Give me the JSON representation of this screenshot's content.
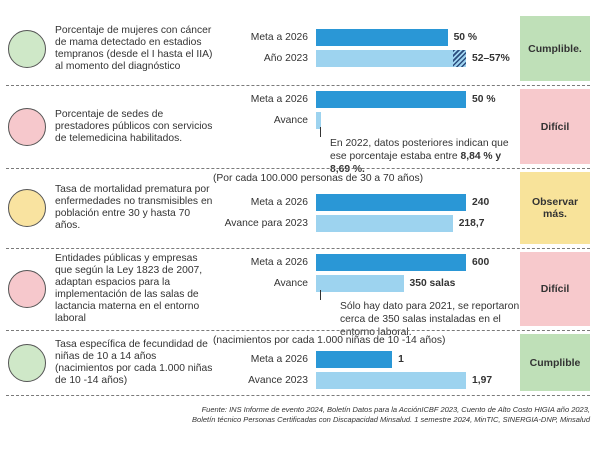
{
  "rows": [
    {
      "description": "Porcentaje de mujeres con cáncer de mama detectado en estadios tempranos (desde el I hasta el IIA) al momento del diagnóstico",
      "status": "Cumplible.",
      "bars": [
        {
          "label": "Meta a 2026",
          "value": 50,
          "value_label": "50 %"
        },
        {
          "label": "Año 2023",
          "value": [
            52,
            57
          ],
          "value_label": "52–57%"
        }
      ]
    },
    {
      "description": "Porcentaje de sedes de prestadores públicos con servicios de telemedicina habilitados.",
      "status": "Difícil",
      "bars": [
        {
          "label": "Meta a 2026",
          "value": 50,
          "value_label": "50 %"
        },
        {
          "label": "Avance",
          "value": null
        }
      ],
      "note": "En 2022, datos posteriores indican que ese porcentaje estaba entre",
      "note_bold": "8,84 % y 8,69 %."
    },
    {
      "description": "Tasa de mortalidad prematura por enfermedades no transmisibles en población entre 30 y hasta 70 años.",
      "status": "Observar más.",
      "note_top": "(Por cada 100.000 personas de 30 a 70 años)",
      "bars": [
        {
          "label": "Meta a 2026",
          "value": 240
        },
        {
          "label": "Avance para 2023",
          "value": 218.7,
          "value_label": "218,7"
        }
      ]
    },
    {
      "description": "Entidades públicas y empresas que según la Ley 1823 de 2007, adaptan espacios para la implementación de las salas de lactancia materna en el entorno laboral",
      "status": "Difícil",
      "bars": [
        {
          "label": "Meta a 2026",
          "value": 600
        },
        {
          "label": "Avance",
          "value": 350,
          "value_label": "350 salas"
        }
      ],
      "note": "Sólo hay dato para 2021, se reportaron cerca de 350 salas instaladas en el entorno laboral."
    },
    {
      "description": "Tasa específica de fecundidad de niñas de 10 a 14 años (nacimientos por cada 1.000 niñas de 10 -14 años)",
      "status": "Cumplible",
      "note_top": "(nacimientos por cada 1.000 niñas de 10 -14 años)",
      "bars": [
        {
          "label": "Meta a 2026",
          "value": 1
        },
        {
          "label": "Avance 2023",
          "value": 1.97,
          "value_label": "1,97"
        }
      ]
    }
  ],
  "source": [
    "Fuente: INS Informe de evento 2024, Boletín Datos para la AcciónICBF 2023, Cuento de Alto Costo HIGIA año 2023,",
    "Boletín técnico Personas Certificadas con Discapacidad Minsalud. 1 semestre 2024, MinTIC, SINERGIA-DNP, Minsalud"
  ]
}
